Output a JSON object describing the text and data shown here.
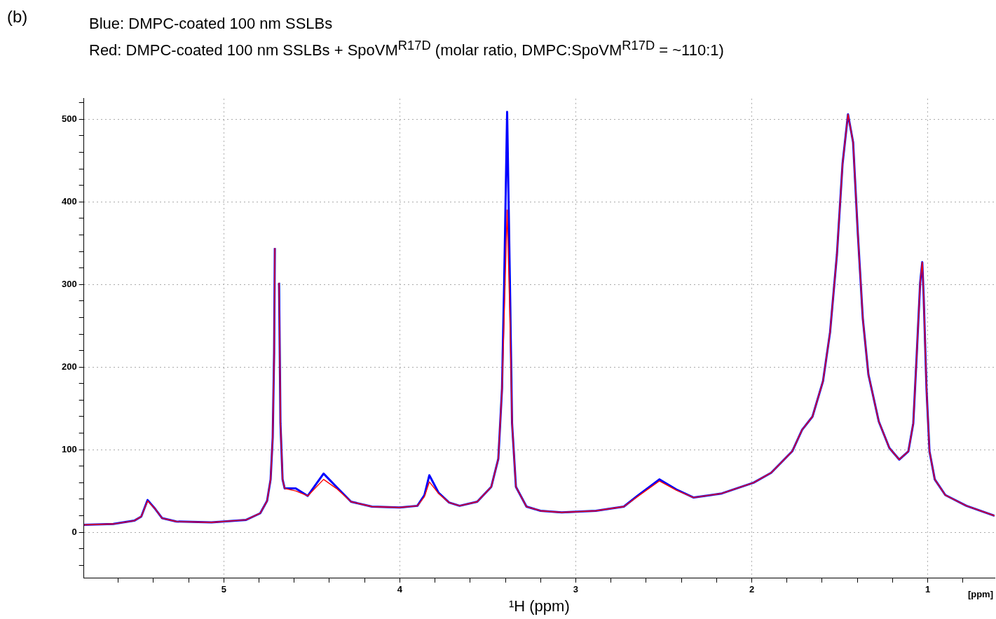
{
  "chart_data": {
    "type": "line",
    "title": "(b)",
    "subtitle": "Blue: DMPC-coated 100 nm SSLBs\nRed: DMPC-coated 100 nm SSLBs + SpoVM$^{R17D}$ (molar ratio, DMPC:SpoVM$^{R17D}$ = ~110:1)",
    "xlabel": "¹H (ppm)",
    "annotations": [
      "[ppm]"
    ],
    "x": [
      5.795,
      5.628,
      5.509,
      5.469,
      5.433,
      5.389,
      5.35,
      5.27,
      5.07,
      4.873,
      4.793,
      4.754,
      4.734,
      4.722,
      4.714,
      4.71,
      4.706,
      4.69,
      4.686,
      4.678,
      4.666,
      4.654,
      4.591,
      4.523,
      4.433,
      4.36,
      4.277,
      4.158,
      4.0,
      3.9,
      3.86,
      3.832,
      3.78,
      3.72,
      3.66,
      3.56,
      3.48,
      3.44,
      3.419,
      3.407,
      3.39,
      3.374,
      3.362,
      3.34,
      3.28,
      3.2,
      3.08,
      2.886,
      2.727,
      2.65,
      2.525,
      2.43,
      2.33,
      2.17,
      1.99,
      1.89,
      1.77,
      1.714,
      1.655,
      1.595,
      1.555,
      1.516,
      1.484,
      1.453,
      1.424,
      1.397,
      1.369,
      1.337,
      1.278,
      1.218,
      1.162,
      1.11,
      1.082,
      1.062,
      1.043,
      1.031,
      1.023,
      1.007,
      0.99,
      0.96,
      0.9,
      0.78,
      0.62
    ],
    "series": [
      {
        "color": "#0000ff",
        "values": [
          9,
          10,
          14,
          19,
          39,
          28,
          17,
          13,
          12,
          15,
          23,
          38,
          64,
          115,
          217,
          344,
          null,
          null,
          302,
          132,
          64,
          53,
          53,
          44,
          71,
          55,
          37,
          31,
          30,
          32,
          45,
          69,
          48,
          36,
          32,
          37,
          55,
          89,
          174,
          300,
          509,
          300,
          132,
          55,
          31,
          26,
          24,
          26,
          31,
          44,
          64,
          52,
          42,
          47,
          60,
          72,
          98,
          124,
          140,
          183,
          242,
          336,
          446,
          506,
          472,
          361,
          259,
          191,
          134,
          102,
          88,
          98,
          132,
          217,
          302,
          327,
          285,
          174,
          98,
          64,
          45,
          32,
          20
        ]
      },
      {
        "color": "#ff0000",
        "values": [
          9,
          10,
          14,
          19,
          38,
          28,
          17,
          13,
          12,
          15,
          23,
          38,
          64,
          115,
          217,
          344,
          null,
          null,
          302,
          132,
          64,
          53,
          50,
          44,
          64,
          53,
          37,
          31,
          30,
          32,
          43,
          61,
          47,
          36,
          32,
          37,
          55,
          89,
          174,
          259,
          390,
          259,
          132,
          55,
          31,
          26,
          24,
          26,
          31,
          43,
          62,
          51,
          42,
          47,
          60,
          72,
          98,
          124,
          140,
          183,
          242,
          336,
          446,
          506,
          472,
          361,
          259,
          191,
          134,
          102,
          88,
          98,
          132,
          217,
          302,
          327,
          285,
          174,
          98,
          64,
          45,
          32,
          20
        ]
      }
    ],
    "xlim": [
      5.795,
      0.62
    ],
    "xticks": [
      {
        "value": 5.6,
        "label": null
      },
      {
        "value": 5.4,
        "label": null
      },
      {
        "value": 5.2,
        "label": null
      },
      5,
      {
        "value": 4.8,
        "label": null
      },
      {
        "value": 4.6,
        "label": null
      },
      {
        "value": 4.4,
        "label": null
      },
      {
        "value": 4.2,
        "label": null
      },
      4,
      {
        "value": 3.8,
        "label": null
      },
      {
        "value": 3.6,
        "label": null
      },
      {
        "value": 3.4,
        "label": null
      },
      {
        "value": 3.2,
        "label": null
      },
      3,
      {
        "value": 2.8,
        "label": null
      },
      {
        "value": 2.6,
        "label": null
      },
      {
        "value": 2.4,
        "label": null
      },
      {
        "value": 2.2,
        "label": null
      },
      2,
      {
        "value": 1.8,
        "label": null
      },
      {
        "value": 1.6,
        "label": null
      },
      {
        "value": 1.4,
        "label": null
      },
      {
        "value": 1.2,
        "label": null
      },
      1,
      {
        "value": 0.8,
        "label": null
      }
    ],
    "ylim": [
      -55,
      525
    ],
    "yticks": [
      {
        "value": -40,
        "label": null
      },
      {
        "value": -20,
        "label": null
      },
      0,
      {
        "value": 20,
        "label": null
      },
      {
        "value": 40,
        "label": null
      },
      {
        "value": 60,
        "label": null
      },
      {
        "value": 80,
        "label": null
      },
      100,
      {
        "value": 120,
        "label": null
      },
      {
        "value": 140,
        "label": null
      },
      {
        "value": 160,
        "label": null
      },
      {
        "value": 180,
        "label": null
      },
      200,
      {
        "value": 220,
        "label": null
      },
      {
        "value": 240,
        "label": null
      },
      {
        "value": 260,
        "label": null
      },
      {
        "value": 280,
        "label": null
      },
      300,
      {
        "value": 320,
        "label": null
      },
      {
        "value": 340,
        "label": null
      },
      {
        "value": 360,
        "label": null
      },
      {
        "value": 380,
        "label": null
      },
      400,
      {
        "value": 420,
        "label": null
      },
      {
        "value": 440,
        "label": null
      },
      {
        "value": 460,
        "label": null
      },
      {
        "value": 480,
        "label": null
      },
      500,
      {
        "value": 520,
        "label": null
      }
    ],
    "grid": true,
    "legend": false,
    "marker": "none",
    "line_style": "solid"
  }
}
